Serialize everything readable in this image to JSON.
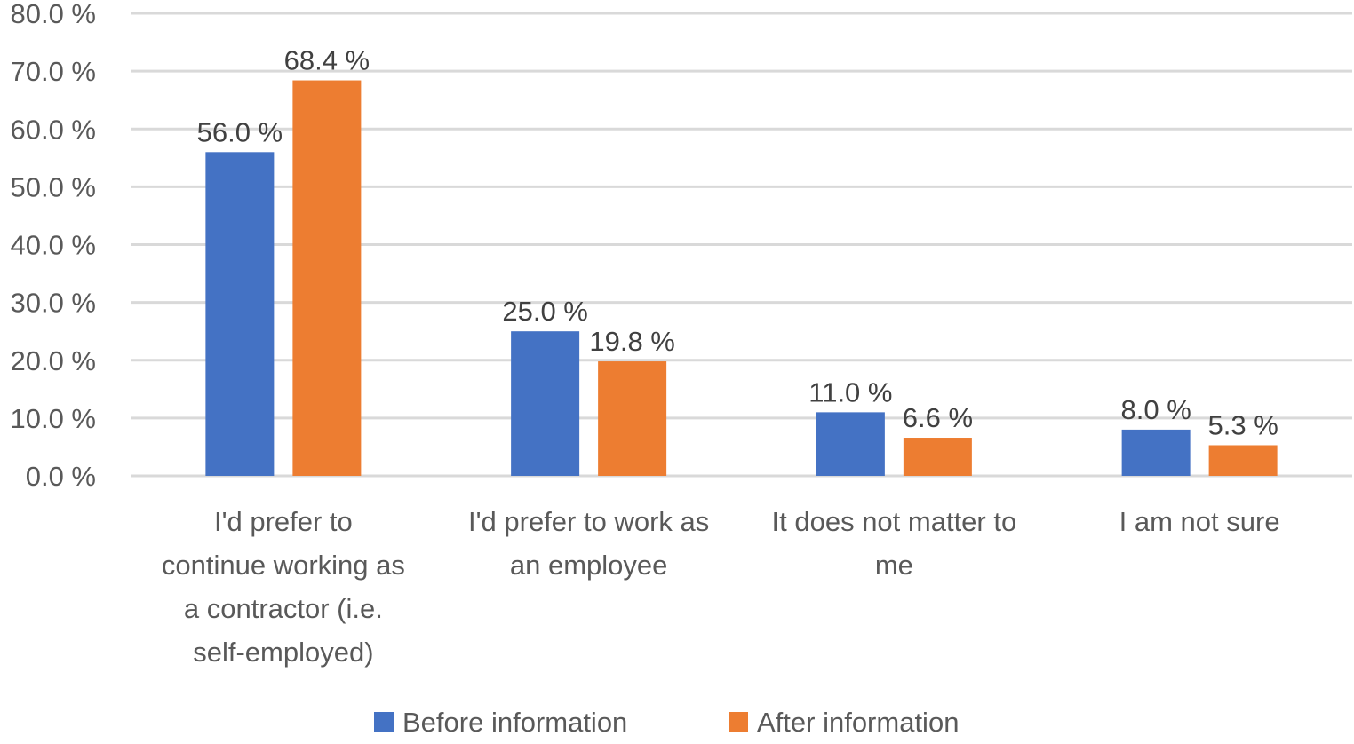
{
  "chart_data": {
    "type": "bar",
    "categories": [
      [
        "I'd prefer to",
        "continue working as",
        "a contractor (i.e.",
        "self-employed)"
      ],
      [
        "I'd prefer to work as",
        "an employee"
      ],
      [
        "It does not matter to",
        "me"
      ],
      [
        "I am not sure"
      ]
    ],
    "series": [
      {
        "name": "Before information",
        "color": "#4472C4",
        "values": [
          56.0,
          25.0,
          11.0,
          8.0
        ]
      },
      {
        "name": "After information",
        "color": "#ED7D31",
        "values": [
          68.4,
          19.8,
          6.6,
          5.3
        ]
      }
    ],
    "ylim": [
      0,
      80
    ],
    "yticks": [
      "0.0 %",
      "10.0 %",
      "20.0 %",
      "30.0 %",
      "40.0 %",
      "50.0 %",
      "60.0 %",
      "70.0 %",
      "80.0 %"
    ],
    "grid": true,
    "legend_position": "bottom",
    "data_labels": true,
    "label_suffix": " %"
  }
}
